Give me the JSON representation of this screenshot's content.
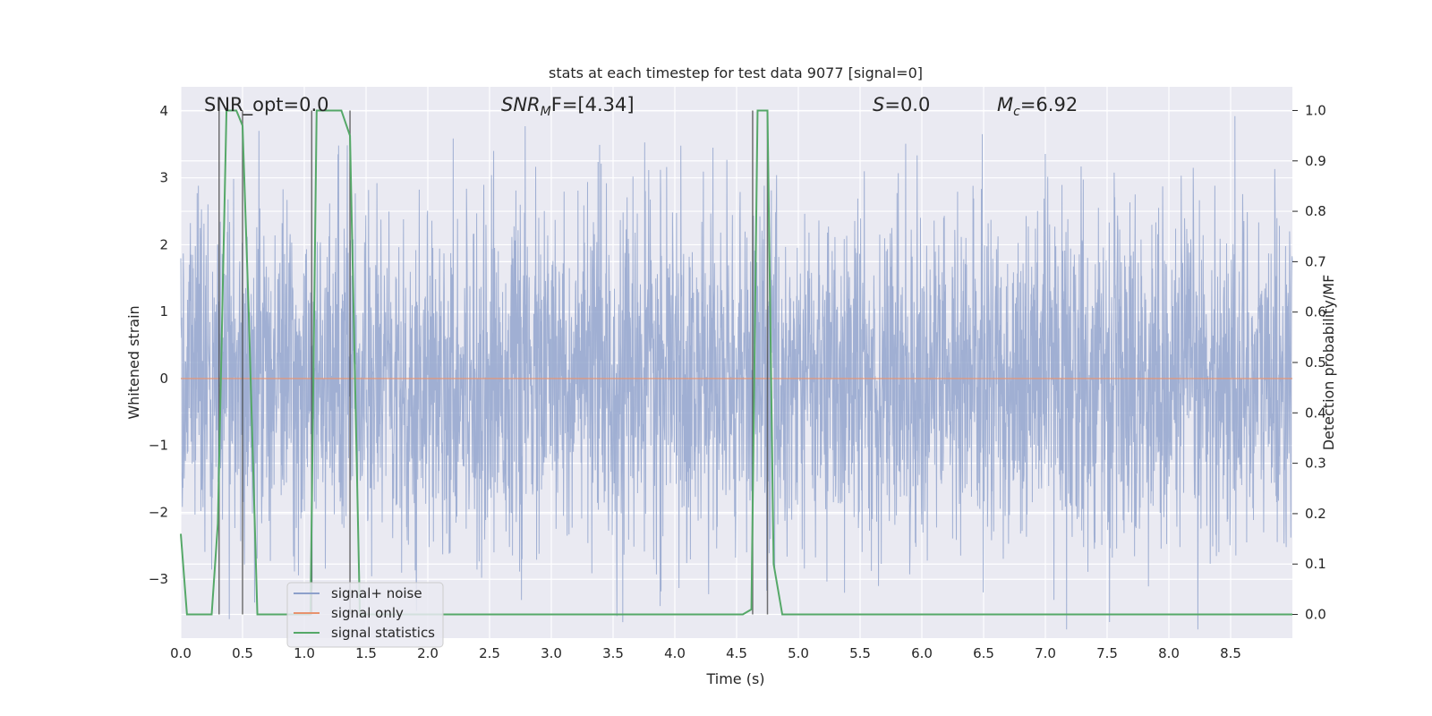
{
  "chart_data": {
    "type": "line",
    "title": "stats at each timestep for test data 9077 [signal=0]",
    "xlabel": "Time (s)",
    "ylabel_left": "Whitened strain",
    "ylabel_right": "Detection probability/MF",
    "xlim": [
      0,
      9.0
    ],
    "ylim_left": [
      -3.88,
      4.36
    ],
    "ylim_right": [
      -0.047,
      1.047
    ],
    "xticks": [
      "0.0",
      "0.5",
      "1.0",
      "1.5",
      "2.0",
      "2.5",
      "3.0",
      "3.5",
      "4.0",
      "4.5",
      "5.0",
      "5.5",
      "6.0",
      "6.5",
      "7.0",
      "7.5",
      "8.0",
      "8.5"
    ],
    "xtick_values": [
      0,
      0.5,
      1,
      1.5,
      2,
      2.5,
      3,
      3.5,
      4,
      4.5,
      5,
      5.5,
      6,
      6.5,
      7,
      7.5,
      8,
      8.5
    ],
    "yticks_left": [
      "−3",
      "−2",
      "−1",
      "0",
      "1",
      "2",
      "3",
      "4"
    ],
    "ytick_values_left": [
      -3,
      -2,
      -1,
      0,
      1,
      2,
      3,
      4
    ],
    "yticks_right": [
      "0.0",
      "0.1",
      "0.2",
      "0.3",
      "0.4",
      "0.5",
      "0.6",
      "0.7",
      "0.8",
      "0.9",
      "1.0"
    ],
    "ytick_values_right": [
      0,
      0.1,
      0.2,
      0.3,
      0.4,
      0.5,
      0.6,
      0.7,
      0.8,
      0.9,
      1.0
    ],
    "grid": true,
    "legend_position": "lower-left",
    "annotations": {
      "snr_opt": "SNR_opt=0.0",
      "snr_mf_main": "SNR",
      "snr_mf_sub": "M",
      "snr_mf_rest": "F=[4.34]",
      "s_main": "S",
      "s_rest": "=0.0",
      "mc_main": "M",
      "mc_sub": "c",
      "mc_rest": "=6.92"
    },
    "series": [
      {
        "name": "signal+ noise",
        "color": "#8da0cb",
        "description_values": "whitened strain noise trace, roughly ±2.5 with peaks to ±4, 0–9 s"
      },
      {
        "name": "signal only",
        "color": "#e8926e",
        "x": [
          0,
          9.0
        ],
        "y": [
          0,
          0
        ]
      },
      {
        "name": "signal statistics",
        "color": "#55a868",
        "x": [
          0.0,
          0.05,
          0.1,
          0.25,
          0.3,
          0.37,
          0.45,
          0.5,
          0.55,
          0.62,
          0.7,
          1.0,
          1.05,
          1.1,
          1.15,
          1.3,
          1.37,
          1.45,
          1.5,
          4.55,
          4.62,
          4.67,
          4.75,
          4.8,
          4.87,
          5.0,
          9.0
        ],
        "y": [
          0.16,
          0.0,
          0.0,
          0.0,
          0.18,
          1.0,
          1.0,
          0.97,
          0.6,
          0.0,
          0.0,
          0.0,
          0.0,
          1.0,
          1.0,
          1.0,
          0.95,
          0.0,
          0.0,
          0.0,
          0.01,
          1.0,
          1.0,
          0.1,
          0.0,
          0.0,
          0.0
        ]
      }
    ],
    "vlines": [
      0.31,
      0.5,
      1.06,
      1.37,
      4.63,
      4.75
    ]
  }
}
